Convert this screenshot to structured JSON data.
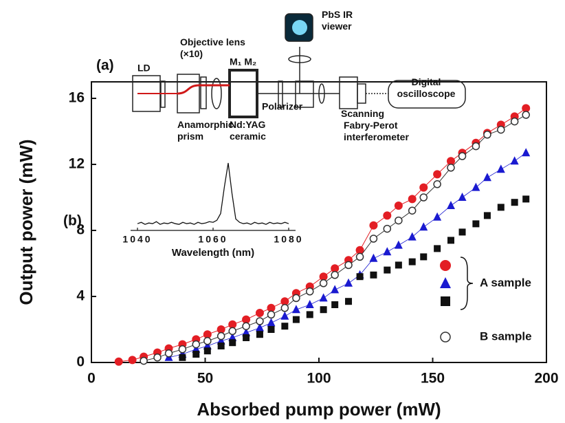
{
  "chart_data": [
    {
      "type": "line",
      "xlabel": "Absorbed pump power (mW)",
      "ylabel": "Output power (mW)",
      "xlim": [
        0,
        200
      ],
      "ylim": [
        0,
        17
      ],
      "xticks": [
        0,
        50,
        100,
        150,
        200
      ],
      "yticks": [
        0,
        4,
        8,
        12,
        16
      ],
      "x": [
        12,
        18,
        23,
        29,
        34,
        40,
        46,
        51,
        57,
        62,
        68,
        74,
        79,
        85,
        90,
        96,
        102,
        107,
        113,
        118,
        124,
        130,
        135,
        141,
        146,
        152,
        158,
        163,
        169,
        174,
        180,
        186,
        191
      ],
      "series": [
        {
          "marker": "circle",
          "color": "#e31e24",
          "line": true,
          "values": [
            0.05,
            0.15,
            0.35,
            0.6,
            0.85,
            1.1,
            1.4,
            1.7,
            2.0,
            2.3,
            2.6,
            3.0,
            3.3,
            3.7,
            4.2,
            4.6,
            5.2,
            5.7,
            6.2,
            6.8,
            8.3,
            8.9,
            9.5,
            9.9,
            10.6,
            11.4,
            12.2,
            12.7,
            13.3,
            13.9,
            14.4,
            14.9,
            15.4
          ]
        },
        {
          "marker": "triangle",
          "color": "#1a1ad0",
          "line": true,
          "values": [
            null,
            null,
            null,
            null,
            0.3,
            0.5,
            0.8,
            1.0,
            1.3,
            1.5,
            1.8,
            2.1,
            2.4,
            2.8,
            3.2,
            3.5,
            3.9,
            4.4,
            4.8,
            5.3,
            6.3,
            6.7,
            7.1,
            7.6,
            8.2,
            8.8,
            9.5,
            10.0,
            10.6,
            11.2,
            11.7,
            12.2,
            12.7
          ]
        },
        {
          "marker": "square",
          "color": "#111111",
          "line": false,
          "values": [
            null,
            null,
            null,
            null,
            null,
            0.3,
            0.5,
            0.7,
            1.0,
            1.2,
            1.5,
            1.7,
            2.0,
            2.2,
            2.6,
            2.9,
            3.2,
            3.5,
            3.7,
            5.2,
            5.3,
            5.6,
            5.9,
            6.1,
            6.4,
            6.9,
            7.4,
            7.9,
            8.4,
            8.9,
            9.4,
            9.7,
            9.9
          ]
        },
        {
          "marker": "open-circle",
          "color": "#333333",
          "line": true,
          "values": [
            null,
            null,
            0.1,
            0.3,
            0.55,
            0.8,
            1.1,
            1.3,
            1.6,
            1.9,
            2.2,
            2.5,
            2.9,
            3.3,
            3.9,
            4.3,
            4.8,
            5.3,
            5.9,
            6.4,
            7.5,
            8.1,
            8.6,
            9.2,
            10.0,
            10.8,
            11.8,
            12.5,
            13.1,
            13.8,
            14.1,
            14.6,
            15.0
          ]
        }
      ],
      "legend": [
        {
          "label": "A sample",
          "series": [
            0,
            1,
            2
          ]
        },
        {
          "label": "B sample",
          "series": [
            3
          ]
        }
      ],
      "panel_labels": [
        "(a)",
        "(b)"
      ]
    },
    {
      "type": "line",
      "xlabel": "Wavelength (nm)",
      "xlim": [
        1040,
        1080
      ],
      "ylim": [
        0,
        1
      ],
      "xticks": [
        1040,
        1060,
        1080
      ],
      "x": [
        1040,
        1041,
        1042,
        1043,
        1044,
        1045,
        1046,
        1047,
        1048,
        1049,
        1050,
        1051,
        1052,
        1053,
        1054,
        1055,
        1056,
        1057,
        1058,
        1059,
        1060,
        1061,
        1062,
        1063,
        1064,
        1065,
        1066,
        1067,
        1068,
        1069,
        1070,
        1071,
        1072,
        1073,
        1074,
        1075,
        1076,
        1077,
        1078,
        1079,
        1080
      ],
      "series": [
        {
          "color": "#111111",
          "values": [
            0.1,
            0.12,
            0.09,
            0.11,
            0.1,
            0.13,
            0.09,
            0.11,
            0.1,
            0.12,
            0.1,
            0.09,
            0.12,
            0.1,
            0.11,
            0.09,
            0.12,
            0.1,
            0.11,
            0.13,
            0.12,
            0.15,
            0.25,
            0.65,
            1.0,
            0.55,
            0.17,
            0.12,
            0.1,
            0.11,
            0.09,
            0.12,
            0.1,
            0.11,
            0.09,
            0.12,
            0.1,
            0.11,
            0.1,
            0.12,
            0.1
          ]
        }
      ]
    }
  ],
  "diagram": {
    "labels": [
      "LD",
      "Objective lens (×10)",
      "M₁ M₂",
      "PbS IR viewer",
      "Digital oscilloscope",
      "Anamorphic prism",
      "Nd:YAG ceramic",
      "Polarizer",
      "Scanning Fabry-Perot interferometer"
    ]
  }
}
